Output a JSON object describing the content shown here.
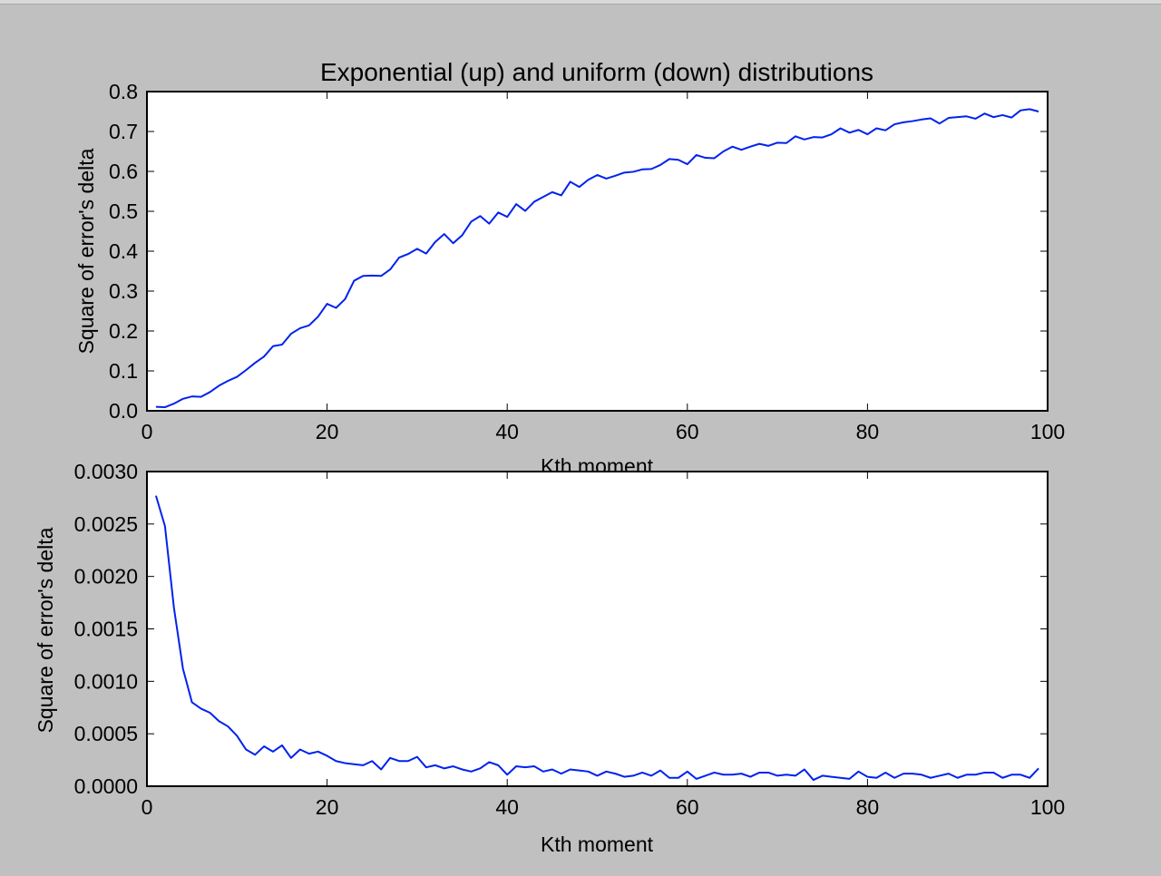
{
  "figure": {
    "background_color": "#c0c0c0",
    "line_color": "#0022ee",
    "axes_facecolor": "#ffffff"
  },
  "chart_data": [
    {
      "type": "line",
      "title": "Exponential (up) and uniform (down) distributions",
      "xlabel": "Kth moment",
      "ylabel": "Square of error's delta",
      "xlim": [
        0,
        100
      ],
      "ylim": [
        0,
        0.8
      ],
      "xticks": [
        0,
        20,
        40,
        60,
        80,
        100
      ],
      "yticks": [
        0.0,
        0.1,
        0.2,
        0.3,
        0.4,
        0.5,
        0.6,
        0.7,
        0.8
      ],
      "xtick_labels": [
        "0",
        "20",
        "40",
        "60",
        "80",
        "100"
      ],
      "ytick_labels": [
        "0.0",
        "0.1",
        "0.2",
        "0.3",
        "0.4",
        "0.5",
        "0.6",
        "0.7",
        "0.8"
      ],
      "grid": false,
      "series": [
        {
          "name": "exponential",
          "color": "#0022ee",
          "x": [
            1,
            2,
            3,
            4,
            5,
            6,
            7,
            8,
            9,
            10,
            11,
            12,
            13,
            14,
            15,
            16,
            17,
            18,
            19,
            20,
            21,
            22,
            23,
            24,
            25,
            26,
            27,
            28,
            29,
            30,
            31,
            32,
            33,
            34,
            35,
            36,
            37,
            38,
            39,
            40,
            41,
            42,
            43,
            44,
            45,
            46,
            47,
            48,
            49,
            50,
            51,
            52,
            53,
            54,
            55,
            56,
            57,
            58,
            59,
            60,
            61,
            62,
            63,
            64,
            65,
            66,
            67,
            68,
            69,
            70,
            71,
            72,
            73,
            74,
            75,
            76,
            77,
            78,
            79,
            80,
            81,
            82,
            83,
            84,
            85,
            86,
            87,
            88,
            89,
            90,
            91,
            92,
            93,
            94,
            95,
            96,
            97,
            98,
            99
          ],
          "values": [
            0.01,
            0.009,
            0.018,
            0.03,
            0.036,
            0.035,
            0.047,
            0.063,
            0.075,
            0.085,
            0.102,
            0.12,
            0.136,
            0.162,
            0.166,
            0.193,
            0.207,
            0.214,
            0.236,
            0.268,
            0.258,
            0.28,
            0.326,
            0.338,
            0.339,
            0.338,
            0.354,
            0.384,
            0.393,
            0.406,
            0.394,
            0.423,
            0.443,
            0.42,
            0.44,
            0.474,
            0.488,
            0.469,
            0.497,
            0.486,
            0.518,
            0.501,
            0.524,
            0.536,
            0.548,
            0.54,
            0.574,
            0.561,
            0.579,
            0.591,
            0.582,
            0.589,
            0.597,
            0.599,
            0.605,
            0.606,
            0.616,
            0.631,
            0.629,
            0.618,
            0.641,
            0.634,
            0.633,
            0.65,
            0.662,
            0.654,
            0.662,
            0.669,
            0.664,
            0.672,
            0.671,
            0.688,
            0.68,
            0.686,
            0.685,
            0.693,
            0.708,
            0.697,
            0.704,
            0.693,
            0.708,
            0.703,
            0.718,
            0.723,
            0.726,
            0.73,
            0.733,
            0.72,
            0.734,
            0.736,
            0.738,
            0.732,
            0.745,
            0.736,
            0.741,
            0.735,
            0.753,
            0.756,
            0.75
          ]
        }
      ]
    },
    {
      "type": "line",
      "title": "",
      "xlabel": "Kth moment",
      "ylabel": "Square of error's delta",
      "xlim": [
        0,
        100
      ],
      "ylim": [
        0,
        0.003
      ],
      "xticks": [
        0,
        20,
        40,
        60,
        80,
        100
      ],
      "yticks": [
        0.0,
        0.0005,
        0.001,
        0.0015,
        0.002,
        0.0025,
        0.003
      ],
      "xtick_labels": [
        "0",
        "20",
        "40",
        "60",
        "80",
        "100"
      ],
      "ytick_labels": [
        "0.0000",
        "0.0005",
        "0.0010",
        "0.0015",
        "0.0020",
        "0.0025",
        "0.0030"
      ],
      "grid": false,
      "series": [
        {
          "name": "uniform",
          "color": "#0022ee",
          "x": [
            1,
            2,
            3,
            4,
            5,
            6,
            7,
            8,
            9,
            10,
            11,
            12,
            13,
            14,
            15,
            16,
            17,
            18,
            19,
            20,
            21,
            22,
            23,
            24,
            25,
            26,
            27,
            28,
            29,
            30,
            31,
            32,
            33,
            34,
            35,
            36,
            37,
            38,
            39,
            40,
            41,
            42,
            43,
            44,
            45,
            46,
            47,
            48,
            49,
            50,
            51,
            52,
            53,
            54,
            55,
            56,
            57,
            58,
            59,
            60,
            61,
            62,
            63,
            64,
            65,
            66,
            67,
            68,
            69,
            70,
            71,
            72,
            73,
            74,
            75,
            76,
            77,
            78,
            79,
            80,
            81,
            82,
            83,
            84,
            85,
            86,
            87,
            88,
            89,
            90,
            91,
            92,
            93,
            94,
            95,
            96,
            97,
            98,
            99
          ],
          "values": [
            0.00277,
            0.00248,
            0.0017,
            0.00112,
            0.0008,
            0.00074,
            0.0007,
            0.00062,
            0.00057,
            0.00048,
            0.00035,
            0.0003,
            0.00038,
            0.00033,
            0.00039,
            0.00027,
            0.00035,
            0.00031,
            0.00033,
            0.00029,
            0.00024,
            0.00022,
            0.00021,
            0.0002,
            0.00024,
            0.00016,
            0.00027,
            0.00024,
            0.00024,
            0.00028,
            0.00018,
            0.0002,
            0.00017,
            0.00019,
            0.00016,
            0.00014,
            0.00017,
            0.00023,
            0.0002,
            0.00011,
            0.00019,
            0.00018,
            0.00019,
            0.00014,
            0.00016,
            0.00012,
            0.00016,
            0.00015,
            0.00014,
            0.0001,
            0.00014,
            0.00012,
            9e-05,
            0.0001,
            0.00013,
            0.0001,
            0.00015,
            8e-05,
            8e-05,
            0.00014,
            7e-05,
            0.0001,
            0.00013,
            0.00011,
            0.00011,
            0.00012,
            9e-05,
            0.00013,
            0.00013,
            0.0001,
            0.00011,
            0.0001,
            0.00016,
            6e-05,
            0.0001,
            9e-05,
            8e-05,
            7e-05,
            0.00014,
            9e-05,
            8e-05,
            0.00013,
            8e-05,
            0.00012,
            0.00012,
            0.00011,
            8e-05,
            0.0001,
            0.00012,
            8e-05,
            0.00011,
            0.00011,
            0.00013,
            0.00013,
            8e-05,
            0.00011,
            0.00011,
            8e-05,
            0.00017
          ]
        }
      ]
    }
  ]
}
